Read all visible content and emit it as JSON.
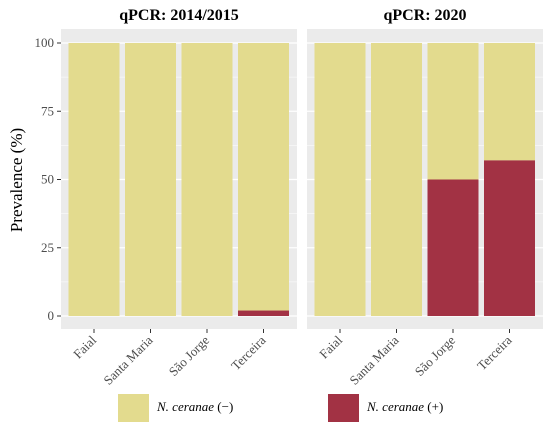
{
  "chart_data": {
    "type": "bar",
    "stacked": true,
    "ylabel": "Prevalence (%)",
    "ylim": [
      0,
      100
    ],
    "yticks": [
      0,
      25,
      50,
      75,
      100
    ],
    "grid": true,
    "legend_position": "bottom",
    "colors": {
      "negative": "#e3db8e",
      "positive": "#a23244",
      "panel_bg": "#ebebeb",
      "grid": "#ffffff"
    },
    "legend": [
      {
        "key": "negative",
        "name": "N. ceranae",
        "suffix": "(−)"
      },
      {
        "key": "positive",
        "name": "N. ceranae",
        "suffix": "(+)"
      }
    ],
    "panels": [
      {
        "title": "qPCR: 2014/2015",
        "categories": [
          "Faial",
          "Santa Maria",
          "São Jorge",
          "Terceira"
        ],
        "positive": [
          0,
          0,
          0,
          2
        ],
        "negative": [
          100,
          100,
          100,
          98
        ]
      },
      {
        "title": "qPCR: 2020",
        "categories": [
          "Faial",
          "Santa Maria",
          "São Jorge",
          "Terceira"
        ],
        "positive": [
          0,
          0,
          50,
          57
        ],
        "negative": [
          100,
          100,
          50,
          43
        ]
      }
    ]
  }
}
